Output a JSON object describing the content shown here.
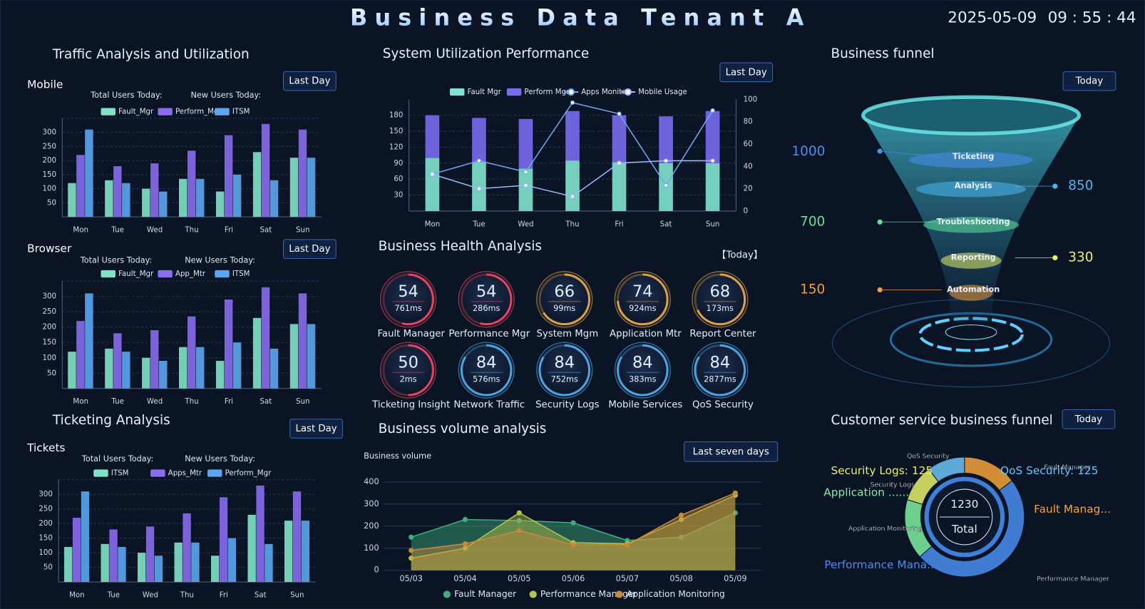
{
  "header": {
    "title": "Business Data Tenant A",
    "date": "2025-05-09",
    "time": "09 : 55 : 44"
  },
  "panels": {
    "traffic": "Traffic Analysis and Utilization",
    "ticketing": "Ticketing Analysis"
  },
  "health": {
    "title": "Business Health Analysis",
    "period": "【Today】",
    "items": [
      {
        "value": 54,
        "latency": "761ms",
        "label": "Fault Manager",
        "color": "#e0455e"
      },
      {
        "value": 54,
        "latency": "286ms",
        "label": "Performance Mgr",
        "color": "#e0455e"
      },
      {
        "value": 66,
        "latency": "99ms",
        "label": "System Mgm",
        "color": "#d9a04a"
      },
      {
        "value": 74,
        "latency": "924ms",
        "label": "Application Mtr",
        "color": "#d9a04a"
      },
      {
        "value": 68,
        "latency": "173ms",
        "label": "Report Center",
        "color": "#d9a04a"
      },
      {
        "value": 50,
        "latency": "2ms",
        "label": "Ticketing Insight",
        "color": "#e0455e"
      },
      {
        "value": 84,
        "latency": "576ms",
        "label": "Network Traffic",
        "color": "#4aa3e0"
      },
      {
        "value": 84,
        "latency": "752ms",
        "label": "Security Logs",
        "color": "#4aa3e0"
      },
      {
        "value": 84,
        "latency": "383ms",
        "label": "Mobile Services",
        "color": "#4aa3e0"
      },
      {
        "value": 84,
        "latency": "2877ms",
        "label": "QoS Security",
        "color": "#4aa3e0"
      }
    ]
  },
  "chart_data": [
    {
      "type": "bar",
      "title": "Mobile",
      "button": "Last Day",
      "stats": [
        "Total Users Today:",
        "New Users Today:"
      ],
      "categories": [
        "Mon",
        "Tue",
        "Wed",
        "Thu",
        "Fri",
        "Sat",
        "Sun"
      ],
      "series": [
        {
          "name": "Fault_Mgr",
          "color": "#7fe3c6",
          "values": [
            120,
            130,
            100,
            135,
            90,
            230,
            210
          ]
        },
        {
          "name": "Perform_Mgr",
          "color": "#8a6cf0",
          "values": [
            220,
            180,
            190,
            235,
            290,
            330,
            310
          ]
        },
        {
          "name": "ITSM",
          "color": "#5aa6f2",
          "values": [
            310,
            120,
            90,
            135,
            150,
            130,
            210
          ]
        }
      ],
      "ylim": [
        0,
        350
      ],
      "yticks": [
        50,
        100,
        150,
        200,
        250,
        300
      ],
      "grid": true
    },
    {
      "type": "bar",
      "title": "Browser",
      "button": "Last Day",
      "stats": [
        "Total Users Today:",
        "New Users Today:"
      ],
      "categories": [
        "Mon",
        "Tue",
        "Wed",
        "Thu",
        "Fri",
        "Sat",
        "Sun"
      ],
      "series": [
        {
          "name": "Fault_Mgr",
          "color": "#7fe3c6",
          "values": [
            120,
            130,
            100,
            135,
            90,
            230,
            210
          ]
        },
        {
          "name": "App_Mtr",
          "color": "#8a6cf0",
          "values": [
            220,
            180,
            190,
            235,
            290,
            330,
            310
          ]
        },
        {
          "name": "ITSM",
          "color": "#5aa6f2",
          "values": [
            310,
            120,
            90,
            135,
            150,
            130,
            210
          ]
        }
      ],
      "ylim": [
        0,
        350
      ],
      "yticks": [
        50,
        100,
        150,
        200,
        250,
        300
      ],
      "grid": true
    },
    {
      "type": "bar",
      "title": "Tickets",
      "button": "Last Day",
      "stats": [
        "Total Users Today:",
        "New Users Today:"
      ],
      "categories": [
        "Mon",
        "Tue",
        "Wed",
        "Thu",
        "Fri",
        "Sat",
        "Sun"
      ],
      "series": [
        {
          "name": "ITSM",
          "color": "#7fe3c6",
          "values": [
            120,
            130,
            100,
            135,
            90,
            230,
            210
          ]
        },
        {
          "name": "Apps_Mtr",
          "color": "#8a6cf0",
          "values": [
            220,
            180,
            190,
            235,
            290,
            330,
            310
          ]
        },
        {
          "name": "Perform_Mgr",
          "color": "#5aa6f2",
          "values": [
            310,
            120,
            90,
            135,
            150,
            130,
            210
          ]
        }
      ],
      "ylim": [
        0,
        350
      ],
      "yticks": [
        50,
        100,
        150,
        200,
        250,
        300
      ],
      "grid": true
    },
    {
      "type": "combo",
      "title": "System Utilization Performance",
      "button": "Last Day",
      "categories": [
        "Mon",
        "Tue",
        "Wed",
        "Thu",
        "Fri",
        "Sat",
        "Sun"
      ],
      "series": [
        {
          "name": "Fault Mgr",
          "color": "#7fe3d0",
          "values": [
            100,
            92,
            80,
            95,
            92,
            90,
            90
          ]
        },
        {
          "name": "Perform Mgr",
          "color": "#7a6cf0",
          "values": [
            80,
            83,
            93,
            93,
            88,
            88,
            98
          ]
        },
        {
          "name": "Apps Monitor",
          "color": "#6fa8f0",
          "axis": "y2",
          "values": [
            33,
            45,
            35,
            97,
            87,
            23,
            90
          ]
        },
        {
          "name": "Mobile Usage",
          "color": "#9fb8f8",
          "axis": "y2",
          "values": [
            33,
            20,
            23,
            13,
            43,
            45,
            45
          ]
        }
      ],
      "ylim": [
        0,
        210
      ],
      "yticks": [
        30,
        60,
        90,
        120,
        150,
        180
      ],
      "y2lim": [
        0,
        100
      ],
      "y2ticks": [
        0,
        20,
        40,
        60,
        80,
        100
      ],
      "grid": true
    },
    {
      "type": "area",
      "title": "Business volume analysis",
      "button": "Last seven days",
      "ylabel": "Business volume",
      "categories": [
        "05/03",
        "05/04",
        "05/05",
        "05/06",
        "05/07",
        "05/08",
        "05/09"
      ],
      "series": [
        {
          "name": "Fault Manager",
          "color": "#3fae7e",
          "values": [
            150,
            230,
            225,
            215,
            135,
            150,
            260
          ]
        },
        {
          "name": "Performance Manager",
          "color": "#b8c24a",
          "values": [
            55,
            100,
            260,
            125,
            120,
            230,
            340
          ]
        },
        {
          "name": "Application Monitoring",
          "color": "#c88a3a",
          "values": [
            90,
            120,
            180,
            115,
            115,
            250,
            350
          ]
        }
      ],
      "ylim": [
        0,
        400
      ],
      "yticks": [
        0,
        100,
        200,
        300,
        400
      ],
      "grid": true
    },
    {
      "type": "funnel",
      "title": "Business funnel",
      "button": "Today",
      "categories": [
        "Ticketing",
        "Analysis",
        "Troubleshooting",
        "Reporting",
        "Automation"
      ],
      "values": [
        1000,
        850,
        700,
        330,
        150
      ],
      "colors": [
        "#4a8ef0",
        "#4ab8f0",
        "#5fe39a",
        "#e8f06a",
        "#f0a040"
      ]
    },
    {
      "type": "donut",
      "title": "Customer service business funnel",
      "button": "Today",
      "categories": [
        "Fault Manager",
        "Performance Manager",
        "Application Monitoring",
        "Security Logs",
        "QoS Security"
      ],
      "values": [
        180,
        600,
        200,
        125,
        125
      ],
      "colors": [
        "#f5a33a",
        "#4a8ef0",
        "#7ef0a0",
        "#e8f06a",
        "#6cc4f8"
      ],
      "callouts": [
        "Fault Manag...",
        "Performance Mana...",
        "Application ......",
        "Security Logs: 125",
        "QoS Security: 125"
      ],
      "total": 1230,
      "total_label": "Total"
    }
  ]
}
